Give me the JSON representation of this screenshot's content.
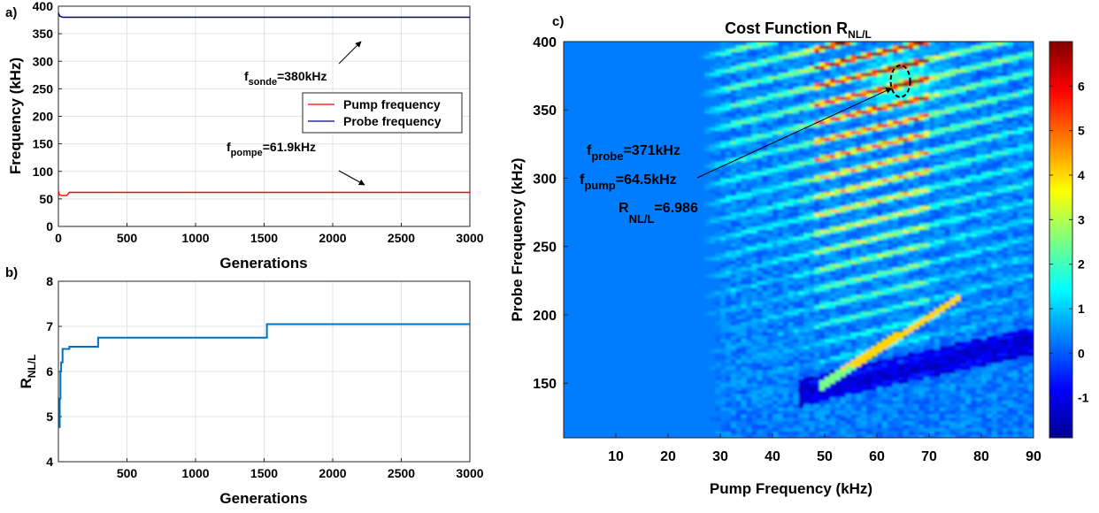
{
  "chart_data": [
    {
      "panel_label": "a)",
      "type": "line",
      "xlabel": "Generations",
      "ylabel": "Frequency (kHz)",
      "xlim": [
        0,
        3000
      ],
      "ylim": [
        0,
        400
      ],
      "xticks": [
        "0",
        "500",
        "1000",
        "1500",
        "2000",
        "2500",
        "3000"
      ],
      "yticks": [
        "0",
        "50",
        "100",
        "150",
        "200",
        "250",
        "300",
        "350",
        "400"
      ],
      "grid": true,
      "legend": "right",
      "series": [
        {
          "name": "Pump frequency",
          "color": "#ff0000",
          "x": [
            0,
            5,
            20,
            60,
            80,
            3000
          ],
          "y": [
            65,
            58,
            56,
            56,
            61.9,
            61.9
          ]
        },
        {
          "name": "Probe frequency",
          "color": "#00007f",
          "x": [
            0,
            10,
            30,
            3000
          ],
          "y": [
            388,
            382,
            380,
            380
          ]
        }
      ],
      "annotations": [
        {
          "main": "f",
          "sub": "sonde",
          "tail": "=380kHz",
          "arrow_to": [
            2250,
            380
          ]
        },
        {
          "main": "f",
          "sub": "pompe",
          "tail": "=61.9kHz",
          "arrow_to": [
            2250,
            62
          ]
        }
      ]
    },
    {
      "panel_label": "b)",
      "type": "line",
      "xlabel": "Generations",
      "ylabel_main": "R",
      "ylabel_sub": "NL/L",
      "xlim": [
        0,
        3000
      ],
      "ylim": [
        4,
        8
      ],
      "xticks": [
        "500",
        "1000",
        "1500",
        "2000",
        "2500",
        "3000"
      ],
      "yticks": [
        "4",
        "5",
        "6",
        "7",
        "8"
      ],
      "grid": true,
      "series": [
        {
          "color": "#0072bd",
          "x": [
            10,
            10,
            15,
            15,
            20,
            20,
            30,
            30,
            80,
            80,
            290,
            290,
            1520,
            1520,
            3000
          ],
          "y": [
            4.75,
            5.4,
            5.4,
            6.0,
            6.0,
            6.2,
            6.2,
            6.5,
            6.5,
            6.55,
            6.55,
            6.75,
            6.75,
            7.05,
            7.05
          ]
        }
      ]
    },
    {
      "panel_label": "c)",
      "type": "heatmap",
      "title_main": "Cost Function R",
      "title_sub": "NL/L",
      "xlabel": "Pump Frequency (kHz)",
      "ylabel": "Probe Frequency (kHz)",
      "xlim": [
        0,
        90
      ],
      "ylim": [
        110,
        400
      ],
      "xticks": [
        "10",
        "20",
        "30",
        "40",
        "50",
        "60",
        "70",
        "80",
        "90"
      ],
      "yticks": [
        "150",
        "200",
        "250",
        "300",
        "350",
        "400"
      ],
      "colorbar_ticks": [
        "-1",
        "0",
        "1",
        "2",
        "3",
        "4",
        "5",
        "6"
      ],
      "colorbar_range": [
        -1.9,
        7
      ],
      "background_value": 0.3,
      "colormap": [
        "#00008f",
        "#0000ff",
        "#007fff",
        "#00ffff",
        "#7fff7f",
        "#ffff00",
        "#ff7f00",
        "#ff0000",
        "#7f0000"
      ],
      "max_marker": {
        "x": 64.5,
        "y": 371
      },
      "annotation_lines": [
        {
          "main": "f",
          "sub": "probe",
          "tail": "=371kHz"
        },
        {
          "main": "f",
          "sub": "pump",
          "tail": "=64.5kHz"
        },
        {
          "main": "R",
          "sub": "NL/L",
          "tail": "=6.986"
        }
      ]
    }
  ]
}
